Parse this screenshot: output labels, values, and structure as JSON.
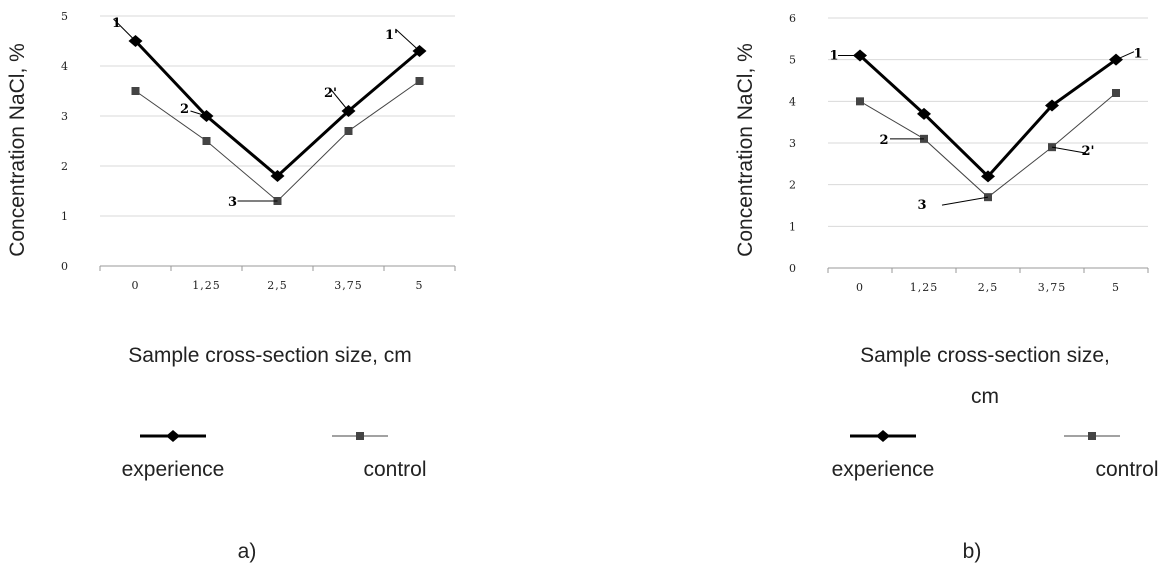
{
  "chart_data": [
    {
      "type": "line",
      "panel_label": "a)",
      "categories": [
        "0",
        "1,25",
        "2,5",
        "3,75",
        "5"
      ],
      "ylim": [
        0,
        5
      ],
      "yticks": [
        "0",
        "1",
        "2",
        "3",
        "4",
        "5"
      ],
      "ylabel": "Concentration NaCl, %",
      "xlabel": "Sample cross-section size, cm",
      "grid": true,
      "legend_position": "bottom",
      "series": [
        {
          "name": "experience",
          "values": [
            4.5,
            3.0,
            1.8,
            3.1,
            4.3
          ],
          "color": "#000000",
          "marker": "diamond"
        },
        {
          "name": "control",
          "values": [
            3.5,
            2.5,
            1.3,
            2.7,
            3.7
          ],
          "color": "#444444",
          "marker": "square"
        }
      ],
      "annotations": [
        {
          "text": "1",
          "series": 0,
          "index": 0
        },
        {
          "text": "2",
          "series": 0,
          "index": 1
        },
        {
          "text": "3",
          "series": 1,
          "index": 2
        },
        {
          "text": "2'",
          "series": 0,
          "index": 3
        },
        {
          "text": "1'",
          "series": 0,
          "index": 4
        }
      ]
    },
    {
      "type": "line",
      "panel_label": "b)",
      "categories": [
        "0",
        "1,25",
        "2,5",
        "3,75",
        "5"
      ],
      "ylim": [
        0,
        6
      ],
      "yticks": [
        "0",
        "1",
        "2",
        "3",
        "4",
        "5",
        "6"
      ],
      "ylabel": "Concentration NaCl, %",
      "xlabel": "Sample cross-section size, cm",
      "grid": true,
      "legend_position": "bottom",
      "series": [
        {
          "name": "experience",
          "values": [
            5.1,
            3.7,
            2.2,
            3.9,
            5.0
          ],
          "color": "#000000",
          "marker": "diamond"
        },
        {
          "name": "control",
          "values": [
            4.0,
            3.1,
            1.7,
            2.9,
            4.2
          ],
          "color": "#444444",
          "marker": "square"
        }
      ],
      "annotations": [
        {
          "text": "1",
          "series": 0,
          "index": 0
        },
        {
          "text": "2",
          "series": 1,
          "index": 1
        },
        {
          "text": "3",
          "series": 1,
          "index": 2
        },
        {
          "text": "2'",
          "series": 1,
          "index": 3
        },
        {
          "text": "1",
          "series": 0,
          "index": 4
        }
      ]
    }
  ]
}
